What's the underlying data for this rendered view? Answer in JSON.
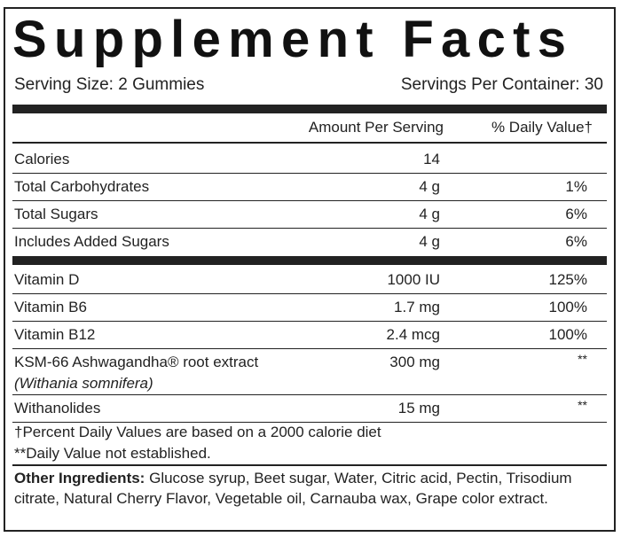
{
  "header": {
    "title": "Supplement Facts",
    "serving_size": "Serving Size: 2 Gummies",
    "servings_per_container": "Servings Per Container: 30"
  },
  "table": {
    "columns": [
      "Amount Per Serving",
      "% Daily Value†"
    ],
    "sections": [
      [
        {
          "name": "Calories",
          "amount": "14"
        },
        {
          "name": "Total Carbohydrates",
          "amount": "4 g",
          "dv": "1%"
        },
        {
          "name": "Total Sugars",
          "amount": "4 g",
          "dv": "6%"
        },
        {
          "name": "Includes Added Sugars",
          "amount": "4 g",
          "dv": "6%"
        }
      ],
      [
        {
          "name": "Vitamin D",
          "amount": "1000 IU",
          "dv": "125%"
        },
        {
          "name": "Vitamin B6",
          "amount": "1.7 mg",
          "dv": "100%"
        },
        {
          "name": "Vitamin B12",
          "amount": "2.4 mcg",
          "dv": "100%"
        },
        {
          "name": "KSM-66 Ashwagandha® root extract",
          "subname": "(Withania somnifera)",
          "amount": "300 mg",
          "dv": "**"
        },
        {
          "name": "Withanolides",
          "amount": "15 mg",
          "dv": "**"
        }
      ]
    ]
  },
  "footnotes": [
    "†Percent Daily Values are based on a 2000 calorie diet",
    "**Daily Value not established."
  ],
  "other_ingredients": {
    "label": "Other Ingredients:",
    "text": "Glucose syrup, Beet sugar, Water, Citric acid, Pectin, Trisodium citrate, Natural Cherry Flavor, Vegetable oil, Carnauba wax, Grape color extract."
  }
}
